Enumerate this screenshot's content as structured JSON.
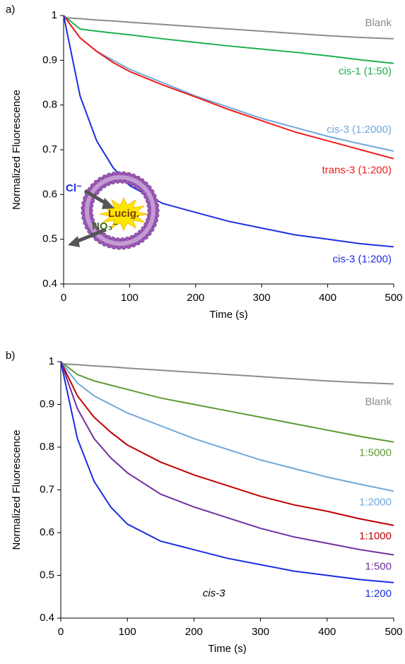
{
  "chart_data": [
    {
      "type": "line",
      "panel_label": "a)",
      "xlabel": "Time (s)",
      "ylabel": "Normalized Fluorescence",
      "x": [
        0,
        25,
        50,
        75,
        100,
        150,
        200,
        250,
        300,
        350,
        400,
        450,
        500
      ],
      "xlim": [
        0,
        500
      ],
      "xticks": [
        0,
        100,
        200,
        300,
        400,
        500
      ],
      "ylim": [
        0.4,
        1
      ],
      "yticks": [
        0.4,
        0.5,
        0.6,
        0.7,
        0.8,
        0.9,
        1
      ],
      "series": [
        {
          "name": "Blank",
          "color": "#8c8c8c",
          "values": [
            0.995,
            0.993,
            0.99,
            0.988,
            0.985,
            0.98,
            0.975,
            0.97,
            0.965,
            0.96,
            0.955,
            0.951,
            0.948
          ]
        },
        {
          "name": "cis-1 (1:50)",
          "color": "#1fb050",
          "values": [
            1.0,
            0.97,
            0.965,
            0.961,
            0.957,
            0.948,
            0.94,
            0.932,
            0.925,
            0.918,
            0.91,
            0.901,
            0.893
          ]
        },
        {
          "name": "cis-3 (1:2000)",
          "color": "#6fa8dc",
          "values": [
            1.0,
            0.95,
            0.92,
            0.9,
            0.88,
            0.85,
            0.82,
            0.795,
            0.77,
            0.75,
            0.73,
            0.713,
            0.697
          ]
        },
        {
          "name": "trans-3 (1:200)",
          "color": "#ee1c1c",
          "values": [
            1.0,
            0.95,
            0.92,
            0.895,
            0.875,
            0.845,
            0.818,
            0.79,
            0.765,
            0.74,
            0.72,
            0.7,
            0.68
          ]
        },
        {
          "name": "cis-3 (1:200)",
          "color": "#1c2ee0",
          "values": [
            1.0,
            0.82,
            0.72,
            0.66,
            0.62,
            0.58,
            0.56,
            0.54,
            0.525,
            0.51,
            0.5,
            0.49,
            0.483
          ]
        }
      ],
      "annotations": [
        "Cl⁻",
        "Lucig.",
        "NO₃⁻"
      ]
    },
    {
      "type": "line",
      "panel_label": "b)",
      "xlabel": "Time (s)",
      "ylabel": "Normalized Fluorescence",
      "x": [
        0,
        25,
        50,
        75,
        100,
        150,
        200,
        250,
        300,
        350,
        400,
        450,
        500
      ],
      "xlim": [
        0,
        500
      ],
      "xticks": [
        0,
        100,
        200,
        300,
        400,
        500
      ],
      "ylim": [
        0.4,
        1
      ],
      "yticks": [
        0.4,
        0.5,
        0.6,
        0.7,
        0.8,
        0.9,
        1
      ],
      "series": [
        {
          "name": "Blank",
          "color": "#8c8c8c",
          "values": [
            0.995,
            0.993,
            0.99,
            0.988,
            0.985,
            0.98,
            0.975,
            0.97,
            0.965,
            0.96,
            0.955,
            0.951,
            0.948
          ]
        },
        {
          "name": "1:5000",
          "color": "#5e9a32",
          "values": [
            1.0,
            0.97,
            0.955,
            0.945,
            0.935,
            0.915,
            0.9,
            0.885,
            0.87,
            0.855,
            0.84,
            0.825,
            0.812
          ]
        },
        {
          "name": "1:2000",
          "color": "#6fa8dc",
          "values": [
            1.0,
            0.95,
            0.92,
            0.9,
            0.88,
            0.85,
            0.82,
            0.795,
            0.77,
            0.75,
            0.73,
            0.713,
            0.697
          ]
        },
        {
          "name": "1:1000",
          "color": "#c00000",
          "values": [
            1.0,
            0.92,
            0.87,
            0.835,
            0.805,
            0.765,
            0.735,
            0.71,
            0.685,
            0.665,
            0.65,
            0.632,
            0.617
          ]
        },
        {
          "name": "1:500",
          "color": "#7030a0",
          "values": [
            1.0,
            0.89,
            0.82,
            0.775,
            0.74,
            0.69,
            0.66,
            0.635,
            0.61,
            0.59,
            0.575,
            0.56,
            0.548
          ]
        },
        {
          "name": "1:200",
          "color": "#1c2ee0",
          "values": [
            1.0,
            0.82,
            0.72,
            0.66,
            0.62,
            0.58,
            0.56,
            0.54,
            0.525,
            0.51,
            0.5,
            0.49,
            0.483
          ]
        }
      ],
      "annotations": [
        "cis-3"
      ]
    }
  ]
}
